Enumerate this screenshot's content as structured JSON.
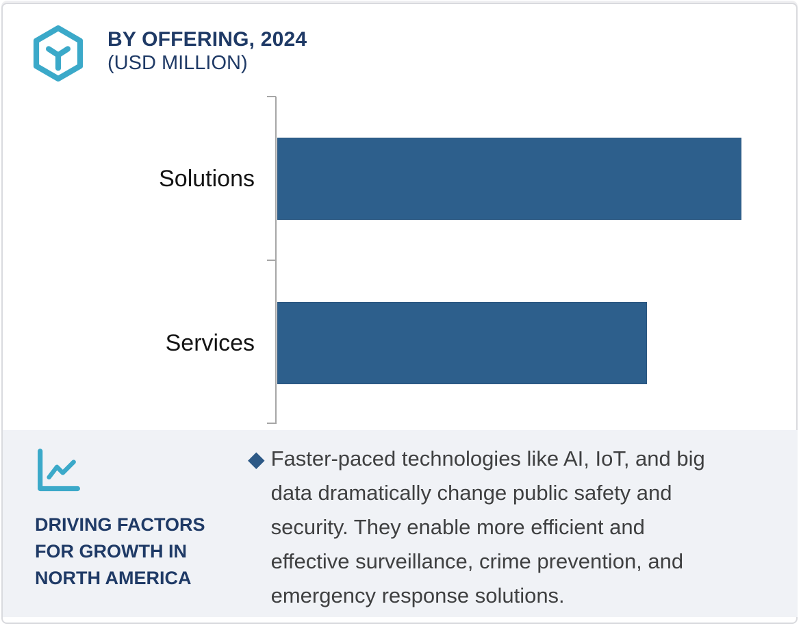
{
  "header": {
    "title": "BY OFFERING, 2024",
    "subtitle": "(USD MILLION)"
  },
  "chart_data": {
    "type": "bar",
    "orientation": "horizontal",
    "title": "BY OFFERING, 2024",
    "subtitle": "(USD MILLION)",
    "categories": [
      "Solutions",
      "Services"
    ],
    "values": [
      100,
      79.6
    ],
    "value_scale": "percent_of_largest_bar_estimated",
    "value_labels_shown": false,
    "xlim": [
      0,
      110
    ],
    "grid": false,
    "legend": false,
    "bar_color": "#2D5F8C",
    "axis_color": "#A6A6A6"
  },
  "panel": {
    "heading": "DRIVING FACTORS\nFOR GROWTH IN\nNORTH AMERICA",
    "bullet_glyph": "◆",
    "bullet_text": "Faster-paced technologies like AI, IoT, and big\ndata dramatically change public safety and\nsecurity. They enable more efficient and\neffective surveillance, crime prevention, and\nemergency response solutions."
  },
  "icons": {
    "logo": "hexagon-y-logo",
    "panel_icon": "line-chart-icon",
    "bullet_icon": "diamond-bullet"
  },
  "colors": {
    "teal": "#3BA9C9",
    "navy": "#1F3A66",
    "bar_blue": "#2D5F8C",
    "diamond_navy": "#2D5986",
    "body_text": "#3F4041",
    "panel_bg": "#F0F2F6",
    "axis_gray": "#A6A6A6",
    "card_border": "#D9DADE"
  }
}
